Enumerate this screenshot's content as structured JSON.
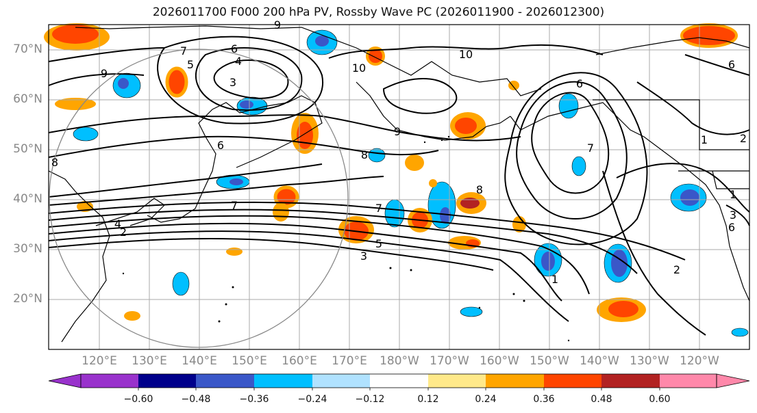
{
  "title": "2026011700 F000 200 hPa PV, Rossby Wave PC (2026011900 - 2026012300)",
  "map": {
    "lat_ticks": [
      "70°N",
      "60°N",
      "50°N",
      "40°N",
      "30°N",
      "20°N"
    ],
    "lon_ticks": [
      "120°E",
      "130°E",
      "140°E",
      "150°E",
      "160°E",
      "170°E",
      "180°W",
      "170°W",
      "160°W",
      "150°W",
      "140°W",
      "130°W",
      "120°W"
    ],
    "contour_labels": [
      "9",
      "7",
      "6",
      "5",
      "4",
      "3",
      "10",
      "10",
      "6",
      "6",
      "9",
      "8",
      "9",
      "8",
      "6",
      "7",
      "4",
      "2",
      "8",
      "7",
      "5",
      "3",
      "1",
      "7",
      "1",
      "2",
      "2",
      "1",
      "3",
      "6"
    ],
    "colors": {
      "land": "#000000",
      "contour": "#000000",
      "grid": "#aaaaaa",
      "circle": "#888888"
    }
  },
  "colorbar": {
    "ticks": [
      "−0.60",
      "−0.48",
      "−0.36",
      "−0.24",
      "−0.12",
      "0.12",
      "0.24",
      "0.36",
      "0.48",
      "0.60"
    ],
    "colors": [
      "#9932cc",
      "#00008b",
      "#3a57c8",
      "#00bfff",
      "#b0e2ff",
      "#ffffff",
      "#ffe98a",
      "#ffa500",
      "#ff4500",
      "#b22222",
      "#ff88aa"
    ]
  }
}
